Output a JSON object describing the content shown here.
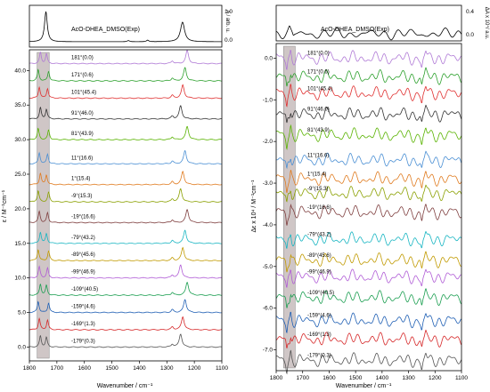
{
  "chart_data": [
    {
      "type": "line",
      "panel": "left",
      "top_label": "AcO-DHEA_DMSO(Exp)",
      "top_ylabel": "A / arb. u.",
      "top_yticks": [
        "0.0",
        "1.0"
      ],
      "ylabel": "ε / M⁻¹cm⁻¹",
      "xlabel": "Wavenumber / cm⁻¹",
      "xlim": [
        1800,
        1100
      ],
      "xticks": [
        1800,
        1700,
        1600,
        1500,
        1400,
        1300,
        1200,
        1100
      ],
      "ylim": [
        -2,
        43
      ],
      "yticks": [
        "0.0",
        "5.0",
        "10.0",
        "15.0",
        "20.0",
        "25.0",
        "30.0",
        "35.0",
        "40.0"
      ],
      "shaded_region_x": [
        1772,
        1728
      ],
      "series": [
        {
          "name": "-179°(0.3)",
          "offset": 0,
          "color": "#555555"
        },
        {
          "name": "-169°(1.3)",
          "offset": 2.5,
          "color": "#d62728"
        },
        {
          "name": "-159°(4.6)",
          "offset": 5,
          "color": "#1f5fb4"
        },
        {
          "name": "-109°(40.5)",
          "offset": 7.5,
          "color": "#1a9e50"
        },
        {
          "name": "-99°(46.9)",
          "offset": 10,
          "color": "#b05cd6"
        },
        {
          "name": "-89°(45.6)",
          "offset": 12.5,
          "color": "#c19a00"
        },
        {
          "name": "-79°(43.2)",
          "offset": 15,
          "color": "#17b5c2"
        },
        {
          "name": "-19°(16.6)",
          "offset": 18,
          "color": "#7f3f3f"
        },
        {
          "name": "-9°(15.3)",
          "offset": 21,
          "color": "#8aa000"
        },
        {
          "name": "1°(15.4)",
          "offset": 23.5,
          "color": "#e07b1f"
        },
        {
          "name": "11°(16.6)",
          "offset": 26.5,
          "color": "#4a8fd4"
        },
        {
          "name": "81°(43.9)",
          "offset": 30,
          "color": "#59b300"
        },
        {
          "name": "91°(46.0)",
          "offset": 33,
          "color": "#333333"
        },
        {
          "name": "101°(45.4)",
          "offset": 36,
          "color": "#e03030"
        },
        {
          "name": "171°(0.6)",
          "offset": 38.5,
          "color": "#2ca02c"
        },
        {
          "name": "181°(0.0)",
          "offset": 41,
          "color": "#b07ad6"
        }
      ]
    },
    {
      "type": "line",
      "panel": "right",
      "top_label": "AcO-DHEA_DMSO(Exp)",
      "top_ylabel": "ΔA x 10⁴/ a.u.",
      "top_yticks": [
        "0.0",
        "0.4"
      ],
      "ylabel": "Δε x 10⁴ / M⁻¹cm⁻¹",
      "xlabel": "Wavenumber / cm⁻¹",
      "xlim": [
        1800,
        1100
      ],
      "xticks": [
        1800,
        1700,
        1600,
        1500,
        1400,
        1300,
        1200,
        1100
      ],
      "ylim": [
        -7.5,
        0.35
      ],
      "yticks": [
        "0.0",
        "-1.0",
        "-2.0",
        "-3.0",
        "-4.0",
        "-5.0",
        "-6.0",
        "-7.0"
      ],
      "shaded_region_x": [
        1772,
        1728
      ],
      "series": [
        {
          "name": "181°(0.0)",
          "offset": 0.0,
          "color": "#b07ad6"
        },
        {
          "name": "171°(0.6)",
          "offset": -0.45,
          "color": "#2ca02c"
        },
        {
          "name": "101°(45.4)",
          "offset": -0.85,
          "color": "#e03030"
        },
        {
          "name": "91°(46.0)",
          "offset": -1.35,
          "color": "#333333"
        },
        {
          "name": "81°(43.9)",
          "offset": -1.85,
          "color": "#59b300"
        },
        {
          "name": "11°(16.6)",
          "offset": -2.45,
          "color": "#4a8fd4"
        },
        {
          "name": "1°(15.4)",
          "offset": -2.9,
          "color": "#e07b1f"
        },
        {
          "name": "-9°(15.3)",
          "offset": -3.25,
          "color": "#8aa000"
        },
        {
          "name": "-19°(16.6)",
          "offset": -3.7,
          "color": "#7f3f3f"
        },
        {
          "name": "-79°(43.2)",
          "offset": -4.35,
          "color": "#17b5c2"
        },
        {
          "name": "-89°(45.6)",
          "offset": -4.85,
          "color": "#c19a00"
        },
        {
          "name": "-99°(46.9)",
          "offset": -5.25,
          "color": "#b05cd6"
        },
        {
          "name": "-109°(40.5)",
          "offset": -5.75,
          "color": "#1a9e50"
        },
        {
          "name": "-159°(4.6)",
          "offset": -6.3,
          "color": "#1f5fb4"
        },
        {
          "name": "-169°(1.3)",
          "offset": -6.75,
          "color": "#d62728"
        },
        {
          "name": "-179°(0.3)",
          "offset": -7.25,
          "color": "#555555"
        }
      ]
    }
  ]
}
